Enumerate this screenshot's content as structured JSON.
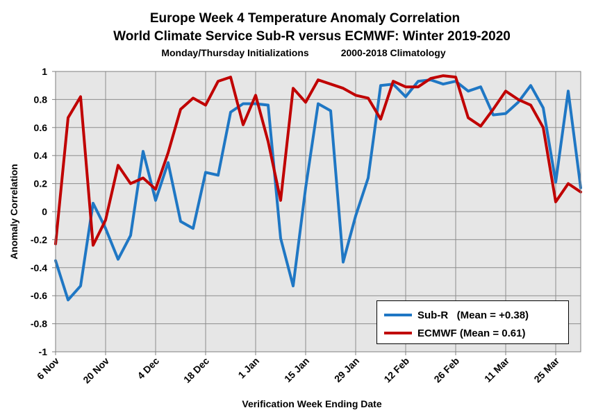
{
  "chart_data": {
    "type": "line",
    "title": "Europe Week 4 Temperature Anomaly Correlation",
    "subtitle": "World Climate Service Sub-R versus ECMWF: Winter 2019-2020",
    "subtitle2_left": "Monday/Thursday Initializations",
    "subtitle2_right": "2000-2018 Climatology",
    "xlabel": "Verification Week Ending Date",
    "ylabel": "Anomaly Correlation",
    "ylim": [
      -1,
      1
    ],
    "yticks": [
      "1",
      "0.8",
      "0.6",
      "0.4",
      "0.2",
      "0",
      "-0.2",
      "-0.4",
      "-0.6",
      "-0.8",
      "-1"
    ],
    "xtick_labels": [
      "6 Nov",
      "20 Nov",
      "4 Dec",
      "18 Dec",
      "1 Jan",
      "15 Jan",
      "29 Jan",
      "12 Feb",
      "26 Feb",
      "11 Mar",
      "25 Mar"
    ],
    "grid": true,
    "legend_position": "bottom-right",
    "series": [
      {
        "name": "Sub-R   (Mean = +0.38)",
        "color": "#1f77c4",
        "values": [
          -0.35,
          -0.63,
          -0.53,
          0.06,
          -0.12,
          -0.34,
          -0.17,
          0.43,
          0.08,
          0.35,
          -0.07,
          -0.12,
          0.28,
          0.26,
          0.71,
          0.77,
          0.77,
          0.76,
          -0.19,
          -0.53,
          0.17,
          0.77,
          0.72,
          -0.36,
          -0.03,
          0.24,
          0.9,
          0.91,
          0.82,
          0.93,
          0.94,
          0.91,
          0.93,
          0.86,
          0.89,
          0.69,
          0.7,
          0.78,
          0.9,
          0.74,
          0.21,
          0.86,
          0.17
        ]
      },
      {
        "name": "ECMWF (Mean = 0.61)",
        "color": "#c00000",
        "values": [
          -0.23,
          0.67,
          0.82,
          -0.24,
          -0.06,
          0.33,
          0.2,
          0.24,
          0.16,
          0.42,
          0.73,
          0.81,
          0.76,
          0.93,
          0.96,
          0.62,
          0.83,
          0.5,
          0.08,
          0.88,
          0.78,
          0.94,
          0.91,
          0.88,
          0.83,
          0.81,
          0.66,
          0.93,
          0.89,
          0.89,
          0.95,
          0.97,
          0.96,
          0.67,
          0.61,
          0.73,
          0.86,
          0.8,
          0.76,
          0.6,
          0.07,
          0.2,
          0.14
        ]
      }
    ]
  }
}
